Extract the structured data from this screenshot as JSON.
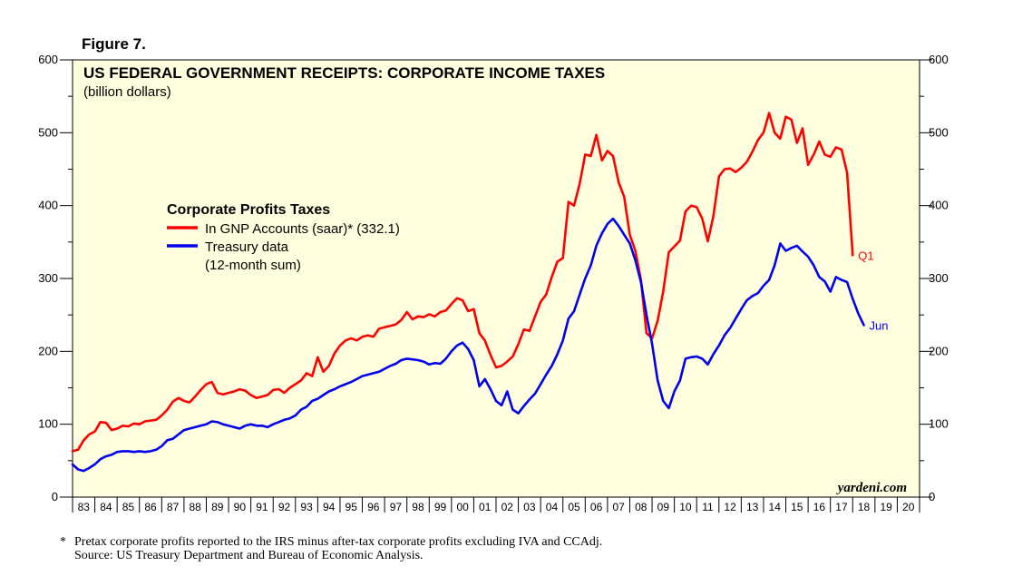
{
  "figure_label": "Figure 7.",
  "chart_data": {
    "type": "line",
    "title": "US FEDERAL GOVERNMENT RECEIPTS: CORPORATE INCOME TAXES",
    "subtitle": "(billion dollars)",
    "ylim": [
      0,
      600
    ],
    "yticks": [
      "0",
      "100",
      "200",
      "300",
      "400",
      "500",
      "600"
    ],
    "xlim": [
      1983,
      2021
    ],
    "x_tick_labels": [
      "83",
      "84",
      "85",
      "86",
      "87",
      "88",
      "89",
      "90",
      "91",
      "92",
      "93",
      "94",
      "95",
      "96",
      "97",
      "98",
      "99",
      "00",
      "01",
      "02",
      "03",
      "04",
      "05",
      "06",
      "07",
      "08",
      "09",
      "10",
      "11",
      "12",
      "13",
      "14",
      "15",
      "16",
      "17",
      "18",
      "19",
      "20"
    ],
    "legend": {
      "title": "Corporate Profits Taxes",
      "entries": [
        "In GNP Accounts (saar)* (332.1)",
        "Treasury data",
        "(12-month sum)"
      ]
    },
    "series": [
      {
        "name": "In GNP Accounts (saar)* (332.1)",
        "color": "#ff0000",
        "end_label": "Q1",
        "points": [
          [
            1983.0,
            63
          ],
          [
            1983.25,
            65
          ],
          [
            1983.5,
            78
          ],
          [
            1983.75,
            86
          ],
          [
            1984.0,
            90
          ],
          [
            1984.25,
            103
          ],
          [
            1984.5,
            102
          ],
          [
            1984.75,
            92
          ],
          [
            1985.0,
            94
          ],
          [
            1985.25,
            98
          ],
          [
            1985.5,
            97
          ],
          [
            1985.75,
            101
          ],
          [
            1986.0,
            100
          ],
          [
            1986.25,
            104
          ],
          [
            1986.5,
            105
          ],
          [
            1986.75,
            106
          ],
          [
            1987.0,
            112
          ],
          [
            1987.25,
            120
          ],
          [
            1987.5,
            131
          ],
          [
            1987.75,
            136
          ],
          [
            1988.0,
            132
          ],
          [
            1988.25,
            130
          ],
          [
            1988.5,
            138
          ],
          [
            1988.75,
            147
          ],
          [
            1989.0,
            155
          ],
          [
            1989.25,
            158
          ],
          [
            1989.5,
            143
          ],
          [
            1989.75,
            141
          ],
          [
            1990.0,
            143
          ],
          [
            1990.25,
            145
          ],
          [
            1990.5,
            148
          ],
          [
            1990.75,
            146
          ],
          [
            1991.0,
            140
          ],
          [
            1991.25,
            136
          ],
          [
            1991.5,
            138
          ],
          [
            1991.75,
            140
          ],
          [
            1992.0,
            147
          ],
          [
            1992.25,
            148
          ],
          [
            1992.5,
            143
          ],
          [
            1992.75,
            150
          ],
          [
            1993.0,
            155
          ],
          [
            1993.25,
            160
          ],
          [
            1993.5,
            170
          ],
          [
            1993.75,
            166
          ],
          [
            1994.0,
            192
          ],
          [
            1994.25,
            172
          ],
          [
            1994.5,
            180
          ],
          [
            1994.75,
            197
          ],
          [
            1995.0,
            208
          ],
          [
            1995.25,
            215
          ],
          [
            1995.5,
            218
          ],
          [
            1995.75,
            215
          ],
          [
            1996.0,
            220
          ],
          [
            1996.25,
            222
          ],
          [
            1996.5,
            220
          ],
          [
            1996.75,
            231
          ],
          [
            1997.0,
            233
          ],
          [
            1997.25,
            235
          ],
          [
            1997.5,
            237
          ],
          [
            1997.75,
            243
          ],
          [
            1998.0,
            254
          ],
          [
            1998.25,
            244
          ],
          [
            1998.5,
            248
          ],
          [
            1998.75,
            247
          ],
          [
            1999.0,
            251
          ],
          [
            1999.25,
            248
          ],
          [
            1999.5,
            254
          ],
          [
            1999.75,
            256
          ],
          [
            2000.0,
            265
          ],
          [
            2000.25,
            273
          ],
          [
            2000.5,
            270
          ],
          [
            2000.75,
            255
          ],
          [
            2001.0,
            258
          ],
          [
            2001.25,
            225
          ],
          [
            2001.5,
            215
          ],
          [
            2001.75,
            195
          ],
          [
            2002.0,
            178
          ],
          [
            2002.25,
            180
          ],
          [
            2002.5,
            186
          ],
          [
            2002.75,
            193
          ],
          [
            2003.0,
            210
          ],
          [
            2003.25,
            230
          ],
          [
            2003.5,
            228
          ],
          [
            2003.75,
            248
          ],
          [
            2004.0,
            268
          ],
          [
            2004.25,
            278
          ],
          [
            2004.5,
            302
          ],
          [
            2004.75,
            323
          ],
          [
            2005.0,
            328
          ],
          [
            2005.25,
            405
          ],
          [
            2005.5,
            400
          ],
          [
            2005.75,
            430
          ],
          [
            2006.0,
            470
          ],
          [
            2006.25,
            468
          ],
          [
            2006.5,
            497
          ],
          [
            2006.75,
            462
          ],
          [
            2007.0,
            475
          ],
          [
            2007.25,
            468
          ],
          [
            2007.5,
            432
          ],
          [
            2007.75,
            412
          ],
          [
            2008.0,
            360
          ],
          [
            2008.25,
            338
          ],
          [
            2008.5,
            298
          ],
          [
            2008.75,
            225
          ],
          [
            2009.0,
            218
          ],
          [
            2009.25,
            242
          ],
          [
            2009.5,
            282
          ],
          [
            2009.75,
            336
          ],
          [
            2010.0,
            344
          ],
          [
            2010.25,
            352
          ],
          [
            2010.5,
            392
          ],
          [
            2010.75,
            400
          ],
          [
            2011.0,
            398
          ],
          [
            2011.25,
            382
          ],
          [
            2011.5,
            351
          ],
          [
            2011.75,
            385
          ],
          [
            2012.0,
            440
          ],
          [
            2012.25,
            450
          ],
          [
            2012.5,
            451
          ],
          [
            2012.75,
            446
          ],
          [
            2013.0,
            452
          ],
          [
            2013.25,
            460
          ],
          [
            2013.5,
            474
          ],
          [
            2013.75,
            490
          ],
          [
            2014.0,
            500
          ],
          [
            2014.25,
            527
          ],
          [
            2014.5,
            500
          ],
          [
            2014.75,
            492
          ],
          [
            2015.0,
            522
          ],
          [
            2015.25,
            518
          ],
          [
            2015.5,
            486
          ],
          [
            2015.75,
            506
          ],
          [
            2016.0,
            456
          ],
          [
            2016.25,
            470
          ],
          [
            2016.5,
            488
          ],
          [
            2016.75,
            470
          ],
          [
            2017.0,
            467
          ],
          [
            2017.25,
            480
          ],
          [
            2017.5,
            477
          ],
          [
            2017.75,
            445
          ],
          [
            2018.0,
            332
          ]
        ]
      },
      {
        "name": "Treasury data (12-month sum)",
        "color": "#0000ee",
        "end_label": "Jun",
        "points": [
          [
            1983.0,
            45
          ],
          [
            1983.25,
            38
          ],
          [
            1983.5,
            36
          ],
          [
            1983.75,
            40
          ],
          [
            1984.0,
            45
          ],
          [
            1984.25,
            52
          ],
          [
            1984.5,
            56
          ],
          [
            1984.75,
            58
          ],
          [
            1985.0,
            62
          ],
          [
            1985.25,
            63
          ],
          [
            1985.5,
            63
          ],
          [
            1985.75,
            62
          ],
          [
            1986.0,
            63
          ],
          [
            1986.25,
            62
          ],
          [
            1986.5,
            63
          ],
          [
            1986.75,
            65
          ],
          [
            1987.0,
            70
          ],
          [
            1987.25,
            78
          ],
          [
            1987.5,
            80
          ],
          [
            1987.75,
            86
          ],
          [
            1988.0,
            92
          ],
          [
            1988.25,
            94
          ],
          [
            1988.5,
            96
          ],
          [
            1988.75,
            98
          ],
          [
            1989.0,
            100
          ],
          [
            1989.25,
            104
          ],
          [
            1989.5,
            103
          ],
          [
            1989.75,
            100
          ],
          [
            1990.0,
            98
          ],
          [
            1990.25,
            96
          ],
          [
            1990.5,
            94
          ],
          [
            1990.75,
            98
          ],
          [
            1991.0,
            100
          ],
          [
            1991.25,
            98
          ],
          [
            1991.5,
            98
          ],
          [
            1991.75,
            96
          ],
          [
            1992.0,
            100
          ],
          [
            1992.25,
            103
          ],
          [
            1992.5,
            106
          ],
          [
            1992.75,
            108
          ],
          [
            1993.0,
            112
          ],
          [
            1993.25,
            120
          ],
          [
            1993.5,
            124
          ],
          [
            1993.75,
            132
          ],
          [
            1994.0,
            135
          ],
          [
            1994.25,
            140
          ],
          [
            1994.5,
            145
          ],
          [
            1994.75,
            148
          ],
          [
            1995.0,
            152
          ],
          [
            1995.25,
            155
          ],
          [
            1995.5,
            158
          ],
          [
            1995.75,
            162
          ],
          [
            1996.0,
            166
          ],
          [
            1996.25,
            168
          ],
          [
            1996.5,
            170
          ],
          [
            1996.75,
            172
          ],
          [
            1997.0,
            176
          ],
          [
            1997.25,
            180
          ],
          [
            1997.5,
            183
          ],
          [
            1997.75,
            188
          ],
          [
            1998.0,
            190
          ],
          [
            1998.25,
            189
          ],
          [
            1998.5,
            188
          ],
          [
            1998.75,
            186
          ],
          [
            1999.0,
            182
          ],
          [
            1999.25,
            184
          ],
          [
            1999.5,
            183
          ],
          [
            1999.75,
            190
          ],
          [
            2000.0,
            200
          ],
          [
            2000.25,
            208
          ],
          [
            2000.5,
            212
          ],
          [
            2000.75,
            203
          ],
          [
            2001.0,
            188
          ],
          [
            2001.25,
            152
          ],
          [
            2001.5,
            162
          ],
          [
            2001.75,
            148
          ],
          [
            2002.0,
            132
          ],
          [
            2002.25,
            126
          ],
          [
            2002.5,
            145
          ],
          [
            2002.75,
            120
          ],
          [
            2003.0,
            115
          ],
          [
            2003.25,
            125
          ],
          [
            2003.5,
            134
          ],
          [
            2003.75,
            142
          ],
          [
            2004.0,
            155
          ],
          [
            2004.25,
            168
          ],
          [
            2004.5,
            180
          ],
          [
            2004.75,
            196
          ],
          [
            2005.0,
            215
          ],
          [
            2005.25,
            245
          ],
          [
            2005.5,
            255
          ],
          [
            2005.75,
            278
          ],
          [
            2006.0,
            300
          ],
          [
            2006.25,
            318
          ],
          [
            2006.5,
            345
          ],
          [
            2006.75,
            362
          ],
          [
            2007.0,
            375
          ],
          [
            2007.25,
            382
          ],
          [
            2007.5,
            372
          ],
          [
            2007.75,
            360
          ],
          [
            2008.0,
            348
          ],
          [
            2008.25,
            325
          ],
          [
            2008.5,
            295
          ],
          [
            2008.75,
            250
          ],
          [
            2009.0,
            210
          ],
          [
            2009.25,
            160
          ],
          [
            2009.5,
            132
          ],
          [
            2009.75,
            122
          ],
          [
            2010.0,
            145
          ],
          [
            2010.25,
            160
          ],
          [
            2010.5,
            190
          ],
          [
            2010.75,
            192
          ],
          [
            2011.0,
            193
          ],
          [
            2011.25,
            190
          ],
          [
            2011.5,
            182
          ],
          [
            2011.75,
            196
          ],
          [
            2012.0,
            208
          ],
          [
            2012.25,
            222
          ],
          [
            2012.5,
            232
          ],
          [
            2012.75,
            245
          ],
          [
            2013.0,
            258
          ],
          [
            2013.25,
            270
          ],
          [
            2013.5,
            276
          ],
          [
            2013.75,
            280
          ],
          [
            2014.0,
            290
          ],
          [
            2014.25,
            298
          ],
          [
            2014.5,
            318
          ],
          [
            2014.75,
            348
          ],
          [
            2015.0,
            338
          ],
          [
            2015.25,
            342
          ],
          [
            2015.5,
            345
          ],
          [
            2015.75,
            337
          ],
          [
            2016.0,
            330
          ],
          [
            2016.25,
            318
          ],
          [
            2016.5,
            302
          ],
          [
            2016.75,
            296
          ],
          [
            2017.0,
            282
          ],
          [
            2017.25,
            302
          ],
          [
            2017.5,
            298
          ],
          [
            2017.75,
            295
          ],
          [
            2018.0,
            272
          ],
          [
            2018.25,
            252
          ],
          [
            2018.5,
            236
          ]
        ]
      }
    ]
  },
  "credit": "yardeni.com",
  "footnote": {
    "marker": "*",
    "line1": "Pretax corporate profits reported to the IRS minus after-tax corporate profits excluding IVA and CCAdj.",
    "line2": "Source: US Treasury Department and Bureau of Economic Analysis."
  }
}
